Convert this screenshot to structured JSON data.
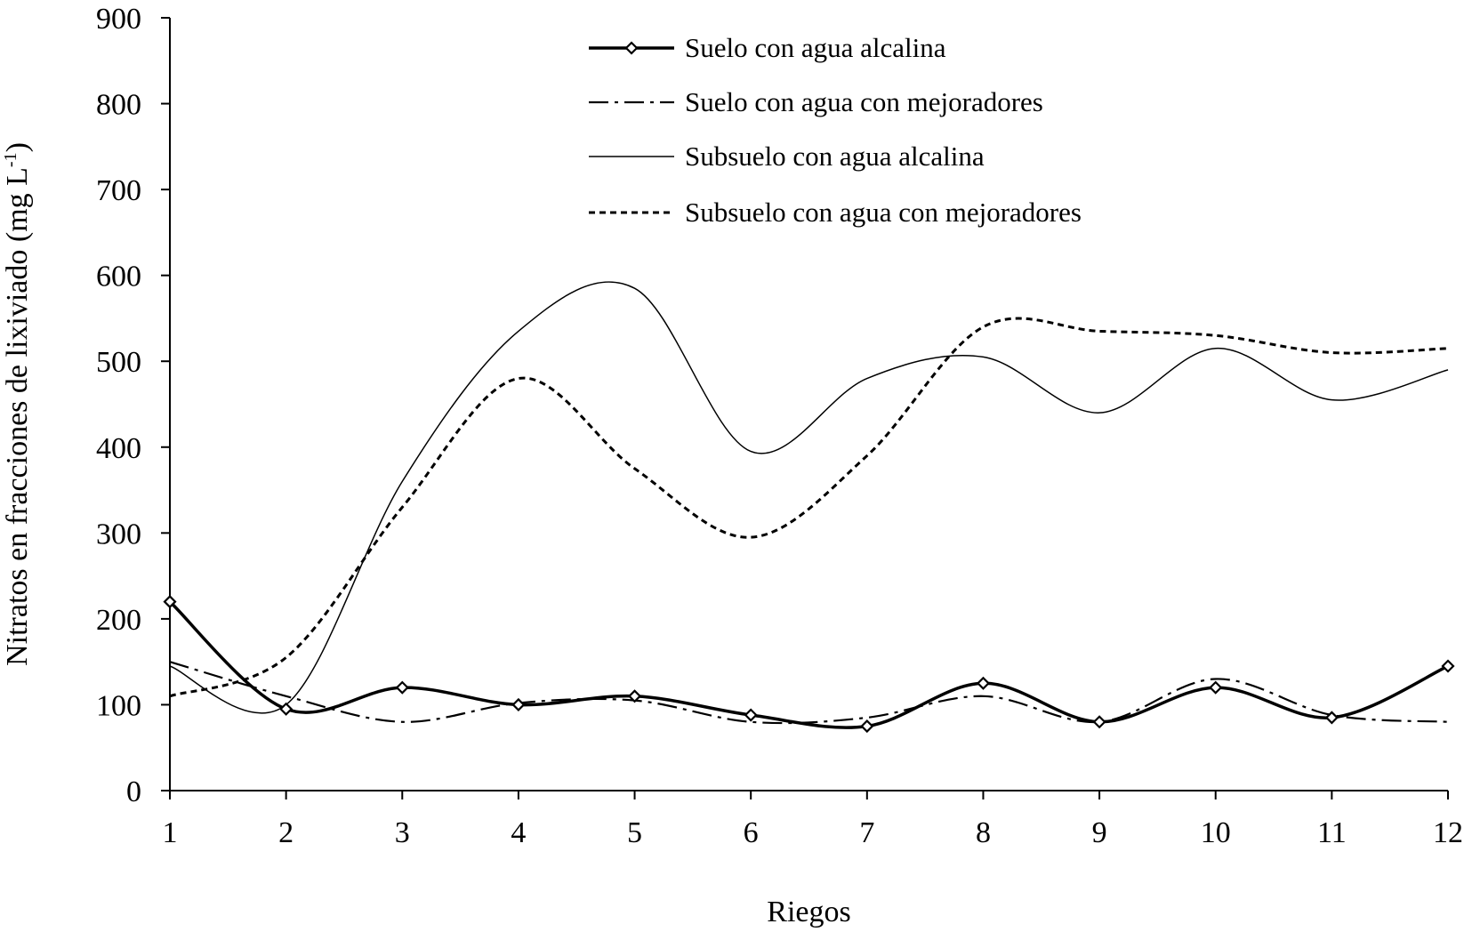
{
  "chart_data": {
    "type": "line",
    "xlabel": "Riegos",
    "ylabel": {
      "main": "Nitratos en fracciones de lixiviado (mg L",
      "sup": "-1",
      "close": ")"
    },
    "x": [
      1,
      2,
      3,
      4,
      5,
      6,
      7,
      8,
      9,
      10,
      11,
      12
    ],
    "x_tick_labels": [
      "1",
      "2",
      "3",
      "4",
      "5",
      "6",
      "7",
      "8",
      "9",
      "10",
      "11",
      "12"
    ],
    "ylim": [
      0,
      900
    ],
    "y_ticks": [
      0,
      100,
      200,
      300,
      400,
      500,
      600,
      700,
      800,
      900
    ],
    "y_tick_labels": [
      "0",
      "100",
      "200",
      "300",
      "400",
      "500",
      "600",
      "700",
      "800",
      "900"
    ],
    "grid": false,
    "legend_position": "top-center",
    "series": [
      {
        "name": "Suelo  con agua alcalina",
        "style": "solid-thick-diamond",
        "color": "#000000",
        "values": [
          220,
          95,
          120,
          100,
          110,
          88,
          75,
          125,
          80,
          120,
          85,
          145
        ]
      },
      {
        "name": "Suelo con agua con mejoradores",
        "style": "dash-dot",
        "color": "#000000",
        "values": [
          150,
          110,
          80,
          102,
          105,
          80,
          85,
          110,
          80,
          130,
          88,
          80
        ]
      },
      {
        "name": "Subsuelo con agua alcalina",
        "style": "solid-thin",
        "color": "#000000",
        "values": [
          145,
          100,
          360,
          535,
          585,
          395,
          480,
          505,
          440,
          515,
          455,
          490
        ]
      },
      {
        "name": "Subsuelo con agua con mejoradores",
        "style": "dashed",
        "color": "#000000",
        "values": [
          110,
          155,
          330,
          480,
          375,
          295,
          390,
          540,
          535,
          530,
          510,
          515
        ]
      }
    ]
  }
}
